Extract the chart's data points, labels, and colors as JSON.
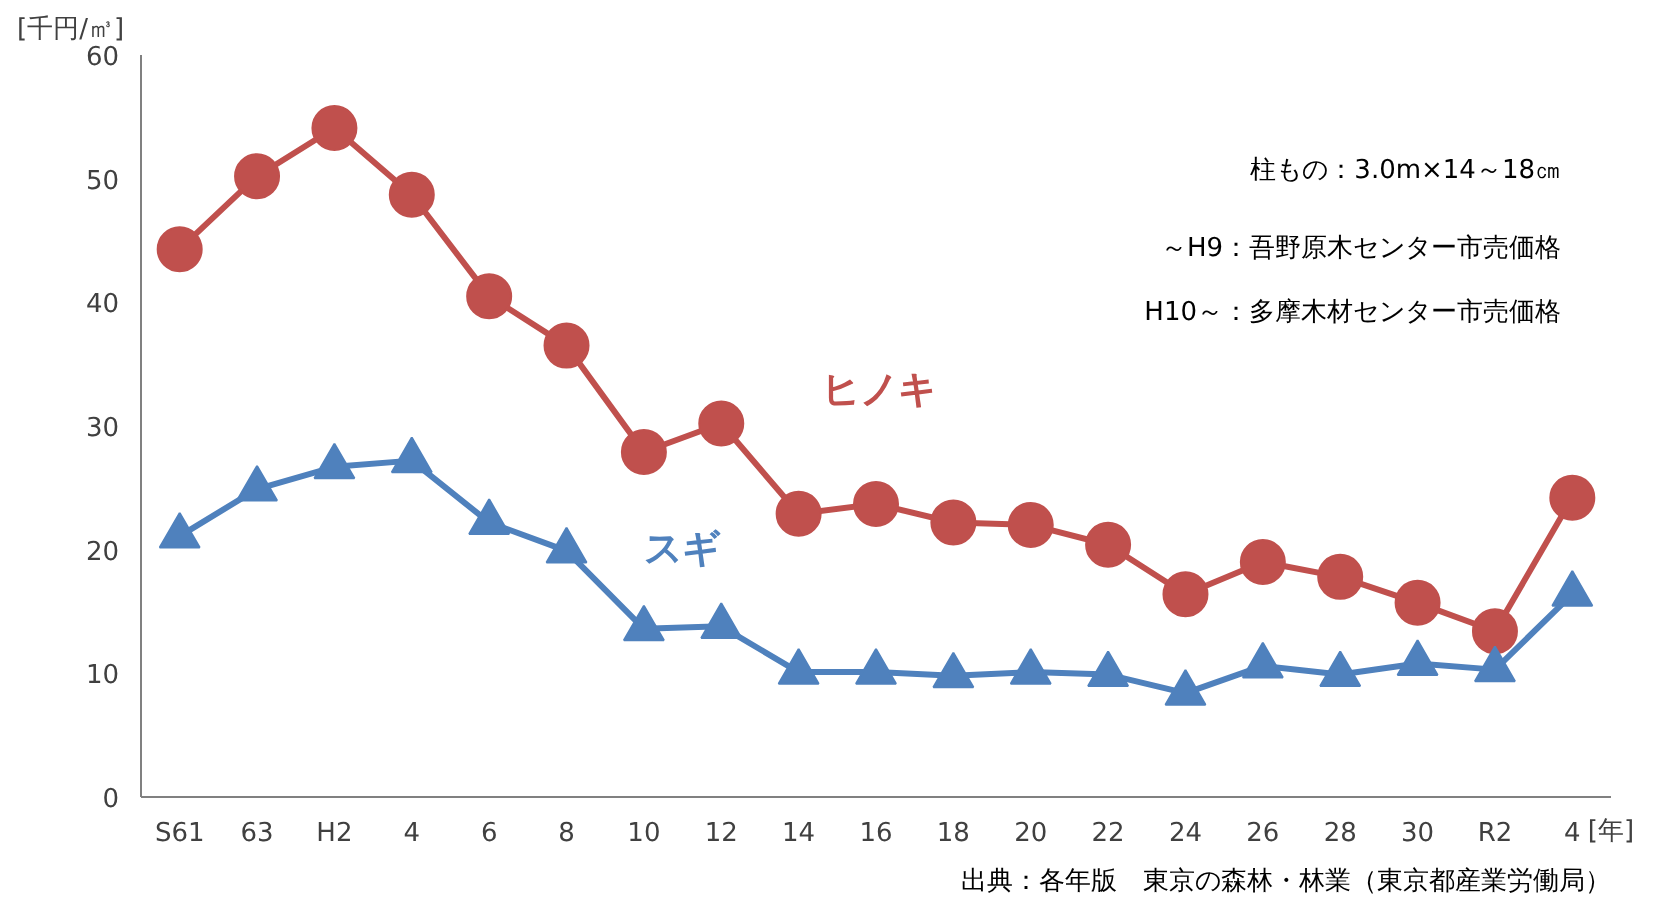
{
  "chart_data": {
    "type": "line",
    "xlabel": "[年]",
    "ylabel": "[千円/㎥]",
    "categories": [
      "S61",
      "63",
      "H2",
      "4",
      "6",
      "8",
      "10",
      "12",
      "14",
      "16",
      "18",
      "20",
      "22",
      "24",
      "26",
      "28",
      "30",
      "R2",
      "4"
    ],
    "series": [
      {
        "name": "ヒノキ",
        "color": "#c0504d",
        "marker": "circle",
        "values": [
          44.3,
          50.2,
          54.1,
          48.7,
          40.5,
          36.5,
          27.9,
          30.2,
          22.9,
          23.7,
          22.2,
          22.0,
          20.4,
          16.4,
          19.0,
          17.8,
          15.7,
          13.4,
          24.2
        ]
      },
      {
        "name": "スギ",
        "color": "#4f81bd",
        "marker": "triangle",
        "values": [
          21.1,
          24.9,
          26.7,
          27.2,
          22.2,
          19.9,
          13.6,
          13.8,
          10.1,
          10.1,
          9.8,
          10.1,
          9.9,
          8.4,
          10.6,
          9.9,
          10.8,
          10.3,
          16.4
        ]
      }
    ],
    "ylim": [
      0,
      60
    ],
    "yticks": [
      0,
      10,
      20,
      30,
      40,
      50,
      60
    ],
    "grid": false,
    "annotations": [
      "柱もの：3.0m×14～18㎝",
      "～H9：吾野原木センター市売価格",
      "H10～：多摩木材センター市売価格",
      "出典：各年版　東京の森林・林業（東京都産業労働局）"
    ]
  }
}
